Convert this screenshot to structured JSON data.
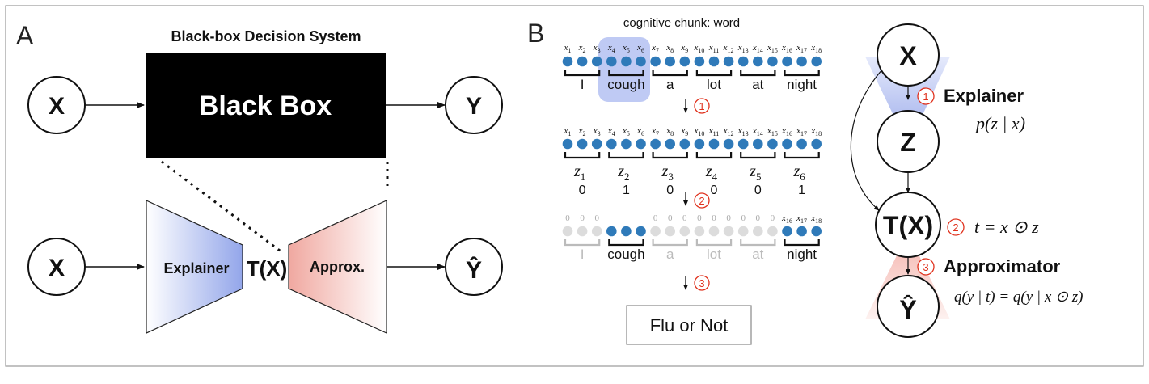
{
  "panel_a": {
    "letter": "A",
    "system_title": "Black-box Decision System",
    "black_box_label": "Black Box",
    "input_label": "X",
    "output_label": "Y",
    "explainer_label": "Explainer",
    "tx_label": "T(X)",
    "approx_label": "Approx.",
    "approx_output_label": "Ŷ"
  },
  "panel_b": {
    "letter": "B",
    "chunk_title": "cognitive chunk: word",
    "x_tokens": [
      "1",
      "2",
      "3",
      "4",
      "5",
      "6",
      "7",
      "8",
      "9",
      "10",
      "11",
      "12",
      "13",
      "14",
      "15",
      "16",
      "17",
      "18"
    ],
    "words": [
      "I",
      "cough",
      "a",
      "lot",
      "at",
      "night"
    ],
    "z_vars": [
      "1",
      "2",
      "3",
      "4",
      "5",
      "6"
    ],
    "z_values": [
      "0",
      "1",
      "0",
      "0",
      "0",
      "1"
    ],
    "masked_zero": "0",
    "step_numbers": [
      "①",
      "②",
      "③"
    ],
    "result_label": "Flu or Not"
  },
  "graph": {
    "node_x": "X",
    "node_z": "Z",
    "node_tx": "T(X)",
    "node_yhat": "Ŷ",
    "step1_label": "Explainer",
    "step1_formula": "p(z | x)",
    "step2_formula": "t = x ⊙ z",
    "step3_label": "Approximator",
    "step3_formula": "q(y | t) = q(y | x ⊙ z)"
  },
  "colors": {
    "dot_active": "#2f7ab9",
    "dot_masked": "#dcdcdc",
    "highlight": "#a9b8f0",
    "explainer_grad": "#93a6ea",
    "approx_grad": "#f0a8a0",
    "step_red": "#e0321e"
  }
}
